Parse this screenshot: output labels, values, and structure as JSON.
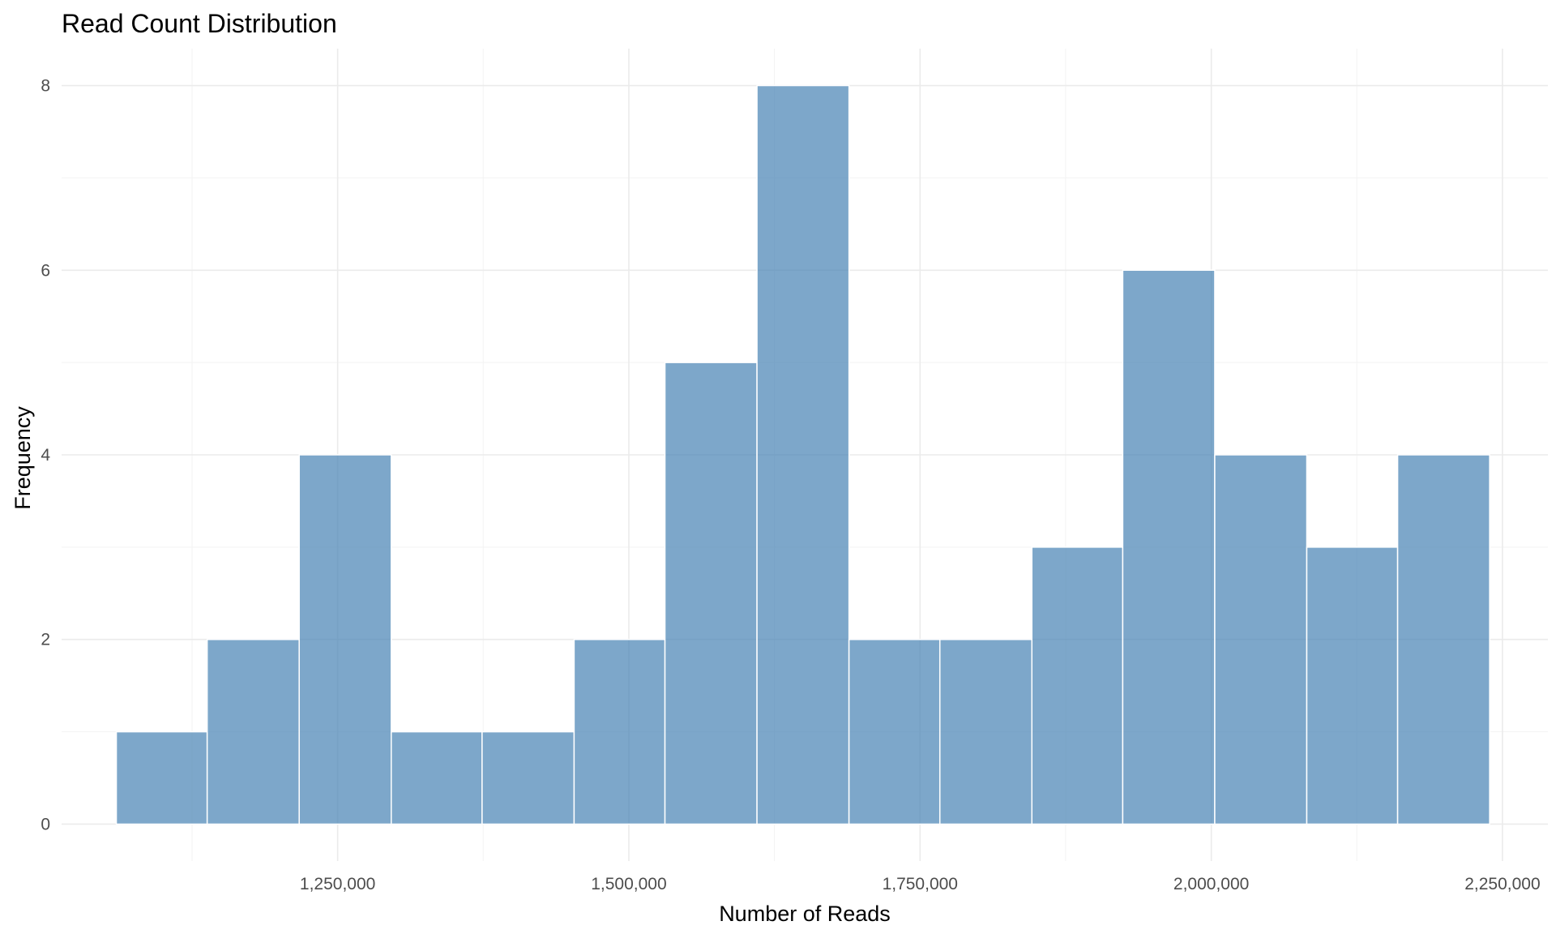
{
  "chart_data": {
    "type": "bar",
    "title": "Read Count Distribution",
    "xlabel": "Number of Reads",
    "ylabel": "Frequency",
    "x_ticks": [
      1250000,
      1500000,
      1750000,
      2000000,
      2250000
    ],
    "x_tick_labels": [
      "1,250,000",
      "1,500,000",
      "1,750,000",
      "2,000,000",
      "2,250,000"
    ],
    "y_ticks": [
      0,
      2,
      4,
      6,
      8
    ],
    "y_tick_labels": [
      "0",
      "2",
      "4",
      "6",
      "8"
    ],
    "xlim": [
      1013000,
      2289000
    ],
    "ylim": [
      -0.4,
      8.4
    ],
    "grid": true,
    "bar_color": "#4682B4",
    "bins": [
      {
        "start": 1060000,
        "end": 1138000,
        "count": 1
      },
      {
        "start": 1138000,
        "end": 1217000,
        "count": 2
      },
      {
        "start": 1217000,
        "end": 1296000,
        "count": 4
      },
      {
        "start": 1296000,
        "end": 1374000,
        "count": 1
      },
      {
        "start": 1374000,
        "end": 1453000,
        "count": 1
      },
      {
        "start": 1453000,
        "end": 1531000,
        "count": 2
      },
      {
        "start": 1531000,
        "end": 1610000,
        "count": 5
      },
      {
        "start": 1610000,
        "end": 1689000,
        "count": 8
      },
      {
        "start": 1689000,
        "end": 1767000,
        "count": 2
      },
      {
        "start": 1767000,
        "end": 1846000,
        "count": 2
      },
      {
        "start": 1846000,
        "end": 1924000,
        "count": 3
      },
      {
        "start": 1924000,
        "end": 2003000,
        "count": 6
      },
      {
        "start": 2003000,
        "end": 2082000,
        "count": 4
      },
      {
        "start": 2082000,
        "end": 2160000,
        "count": 3
      },
      {
        "start": 2160000,
        "end": 2239000,
        "count": 4
      }
    ]
  }
}
